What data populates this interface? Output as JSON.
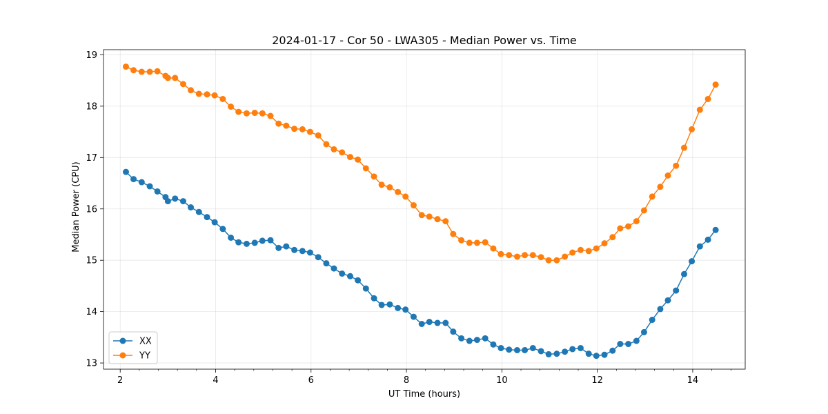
{
  "chart_data": {
    "type": "line",
    "title": "2024-01-17 - Cor 50 - LWA305 - Median Power vs. Time",
    "xlabel": "UT Time (hours)",
    "ylabel": "Median Power (CPU)",
    "xlim": [
      1.65,
      15.1
    ],
    "ylim": [
      12.88,
      19.1
    ],
    "xticks": [
      2,
      4,
      6,
      8,
      10,
      12,
      14
    ],
    "xminor_step": 0.4,
    "yticks": [
      13,
      14,
      15,
      16,
      17,
      18,
      19
    ],
    "grid": true,
    "legend_position": "lower-left",
    "x": [
      2.12,
      2.28,
      2.45,
      2.62,
      2.78,
      2.95,
      3.0,
      3.15,
      3.32,
      3.48,
      3.65,
      3.82,
      3.98,
      4.15,
      4.32,
      4.48,
      4.65,
      4.82,
      4.98,
      5.15,
      5.32,
      5.48,
      5.65,
      5.82,
      5.98,
      6.15,
      6.32,
      6.48,
      6.65,
      6.82,
      6.98,
      7.15,
      7.32,
      7.48,
      7.65,
      7.82,
      7.98,
      8.15,
      8.32,
      8.48,
      8.65,
      8.82,
      8.98,
      9.15,
      9.32,
      9.48,
      9.65,
      9.82,
      9.98,
      10.15,
      10.32,
      10.48,
      10.65,
      10.82,
      10.98,
      11.15,
      11.32,
      11.48,
      11.65,
      11.82,
      11.98,
      12.15,
      12.32,
      12.48,
      12.65,
      12.82,
      12.98,
      13.15,
      13.32,
      13.48,
      13.65,
      13.82,
      13.98,
      14.15,
      14.32,
      14.48
    ],
    "series": [
      {
        "name": "XX",
        "color": "#1f77b4",
        "values": [
          16.72,
          16.58,
          16.52,
          16.44,
          16.34,
          16.23,
          16.15,
          16.2,
          16.15,
          16.03,
          15.94,
          15.84,
          15.74,
          15.61,
          15.44,
          15.35,
          15.32,
          15.34,
          15.38,
          15.39,
          15.24,
          15.27,
          15.2,
          15.18,
          15.15,
          15.06,
          14.94,
          14.84,
          14.74,
          14.69,
          14.61,
          14.45,
          14.26,
          14.13,
          14.14,
          14.07,
          14.04,
          13.9,
          13.76,
          13.8,
          13.78,
          13.78,
          13.61,
          13.48,
          13.43,
          13.45,
          13.48,
          13.36,
          13.29,
          13.26,
          13.25,
          13.25,
          13.29,
          13.23,
          13.17,
          13.18,
          13.22,
          13.27,
          13.29,
          13.18,
          13.14,
          13.16,
          13.24,
          13.37,
          13.37,
          13.43,
          13.6,
          13.84,
          14.05,
          14.22,
          14.41,
          14.73,
          14.98,
          15.27,
          15.4,
          15.59
        ]
      },
      {
        "name": "YY",
        "color": "#ff7f0e",
        "values": [
          18.77,
          18.7,
          18.67,
          18.67,
          18.68,
          18.59,
          18.55,
          18.55,
          18.43,
          18.31,
          18.24,
          18.23,
          18.21,
          18.14,
          17.99,
          17.89,
          17.86,
          17.87,
          17.86,
          17.81,
          17.66,
          17.62,
          17.56,
          17.55,
          17.5,
          17.43,
          17.26,
          17.16,
          17.1,
          17.01,
          16.96,
          16.79,
          16.63,
          16.47,
          16.42,
          16.33,
          16.24,
          16.07,
          15.88,
          15.85,
          15.8,
          15.76,
          15.51,
          15.39,
          15.34,
          15.34,
          15.35,
          15.23,
          15.12,
          15.1,
          15.07,
          15.1,
          15.1,
          15.06,
          15.0,
          15.0,
          15.07,
          15.15,
          15.2,
          15.18,
          15.23,
          15.33,
          15.45,
          15.62,
          15.66,
          15.76,
          15.97,
          16.24,
          16.43,
          16.65,
          16.84,
          17.19,
          17.55,
          17.93,
          18.14,
          18.42
        ]
      }
    ]
  }
}
